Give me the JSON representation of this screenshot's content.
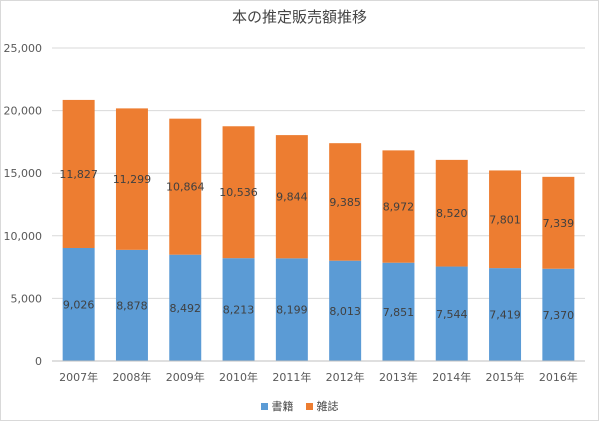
{
  "chart_data": {
    "type": "bar",
    "stacked": true,
    "title": "本の推定販売額推移",
    "categories": [
      "2007年",
      "2008年",
      "2009年",
      "2010年",
      "2011年",
      "2012年",
      "2013年",
      "2014年",
      "2015年",
      "2016年"
    ],
    "series": [
      {
        "name": "書籍",
        "color": "#5b9bd5",
        "values": [
          9026,
          8878,
          8492,
          8213,
          8199,
          8013,
          7851,
          7544,
          7419,
          7370
        ]
      },
      {
        "name": "雑誌",
        "color": "#ed7d31",
        "values": [
          11827,
          11299,
          10864,
          10536,
          9844,
          9385,
          8972,
          8520,
          7801,
          7339
        ]
      }
    ],
    "data_labels": {
      "書籍": [
        "9,026",
        "8,878",
        "8,492",
        "8,213",
        "8,199",
        "8,013",
        "7,851",
        "7,544",
        "7,419",
        "7,370"
      ],
      "雑誌": [
        "11,827",
        "11,299",
        "10,864",
        "10,536",
        "9,844",
        "9,385",
        "8,972",
        "8,520",
        "7,801",
        "7,339"
      ]
    },
    "ylim": [
      0,
      25000
    ],
    "yticks": [
      0,
      5000,
      10000,
      15000,
      20000,
      25000
    ],
    "ytick_labels": [
      "0",
      "5,000",
      "10,000",
      "15,000",
      "20,000",
      "25,000"
    ],
    "grid": true,
    "legend_position": "bottom",
    "xlabel": "",
    "ylabel": ""
  }
}
